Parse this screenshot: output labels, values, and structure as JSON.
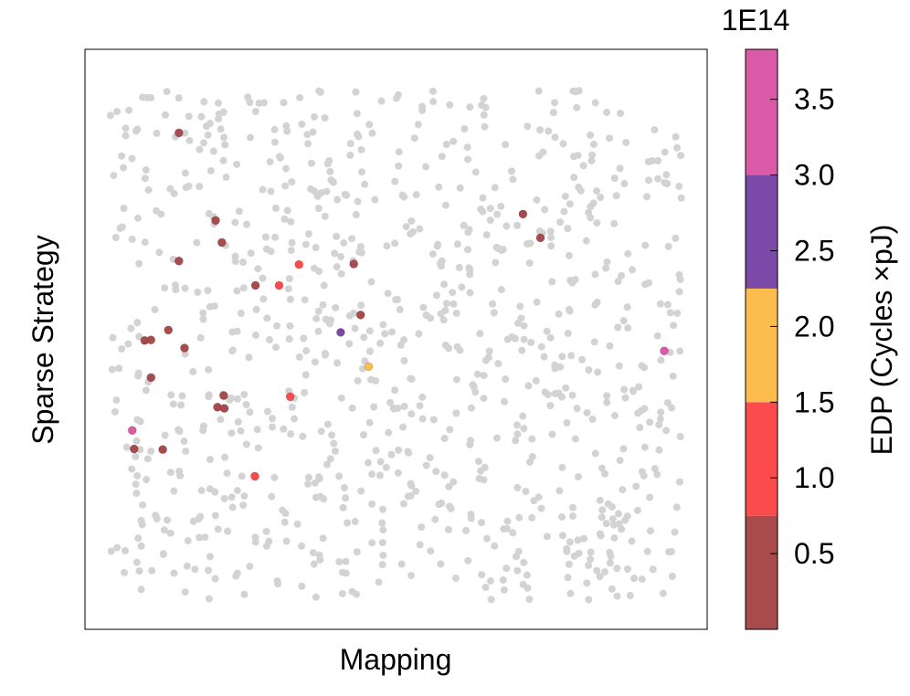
{
  "chart_data": {
    "type": "scatter",
    "xlabel": "Mapping",
    "ylabel": "Sparse Strategy",
    "xlim": [
      0,
      100
    ],
    "ylim": [
      0,
      100
    ],
    "x_ticks_shown": false,
    "y_ticks_shown": false,
    "grid": false,
    "background_points": {
      "color": "#d3d3d3",
      "description_count": 900,
      "seed": 17
    },
    "highlighted_points": [
      {
        "x": 15.1,
        "y": 85.6,
        "edp": 0.4
      },
      {
        "x": 21.0,
        "y": 70.5,
        "edp": 0.4
      },
      {
        "x": 22.0,
        "y": 66.7,
        "edp": 0.4
      },
      {
        "x": 15.1,
        "y": 63.5,
        "edp": 0.4
      },
      {
        "x": 34.4,
        "y": 62.9,
        "edp": 1.2
      },
      {
        "x": 31.2,
        "y": 59.3,
        "edp": 1.2
      },
      {
        "x": 27.4,
        "y": 59.3,
        "edp": 0.4
      },
      {
        "x": 43.2,
        "y": 63.0,
        "edp": 0.4
      },
      {
        "x": 44.3,
        "y": 54.2,
        "edp": 0.4
      },
      {
        "x": 41.1,
        "y": 51.2,
        "edp": 2.8
      },
      {
        "x": 45.6,
        "y": 45.3,
        "edp": 1.9
      },
      {
        "x": 9.6,
        "y": 49.8,
        "edp": 0.4
      },
      {
        "x": 10.6,
        "y": 49.9,
        "edp": 0.4
      },
      {
        "x": 13.4,
        "y": 51.6,
        "edp": 0.4
      },
      {
        "x": 16.0,
        "y": 48.5,
        "edp": 0.4
      },
      {
        "x": 10.6,
        "y": 43.4,
        "edp": 0.4
      },
      {
        "x": 22.3,
        "y": 40.3,
        "edp": 0.4
      },
      {
        "x": 21.3,
        "y": 38.3,
        "edp": 0.4
      },
      {
        "x": 22.4,
        "y": 38.1,
        "edp": 0.4
      },
      {
        "x": 33.0,
        "y": 40.1,
        "edp": 1.2
      },
      {
        "x": 7.6,
        "y": 34.3,
        "edp": 3.7
      },
      {
        "x": 7.9,
        "y": 31.1,
        "edp": 0.4
      },
      {
        "x": 12.5,
        "y": 31.0,
        "edp": 0.4
      },
      {
        "x": 27.3,
        "y": 26.4,
        "edp": 1.2
      },
      {
        "x": 70.4,
        "y": 71.6,
        "edp": 0.4
      },
      {
        "x": 73.2,
        "y": 67.5,
        "edp": 0.4
      },
      {
        "x": 93.1,
        "y": 48.0,
        "edp": 3.7
      }
    ],
    "colorbar": {
      "label": "EDP (Cycles ×pJ)",
      "scale_label": "1E14",
      "range": [
        0,
        3.83
      ],
      "bins": [
        {
          "from": 0.0,
          "to": 0.75,
          "color": "#a94a4c"
        },
        {
          "from": 0.75,
          "to": 1.5,
          "color": "#fc4b4c"
        },
        {
          "from": 1.5,
          "to": 2.25,
          "color": "#fdbd4c"
        },
        {
          "from": 2.25,
          "to": 3.0,
          "color": "#7b4aa8"
        },
        {
          "from": 3.0,
          "to": 3.83,
          "color": "#db5aa7"
        }
      ],
      "ticks": [
        {
          "value": 0.5,
          "label": "0.5"
        },
        {
          "value": 1.0,
          "label": "1.0"
        },
        {
          "value": 1.5,
          "label": "1.5"
        },
        {
          "value": 2.0,
          "label": "2.0"
        },
        {
          "value": 2.5,
          "label": "2.5"
        },
        {
          "value": 3.0,
          "label": "3.0"
        },
        {
          "value": 3.5,
          "label": "3.5"
        }
      ]
    }
  }
}
